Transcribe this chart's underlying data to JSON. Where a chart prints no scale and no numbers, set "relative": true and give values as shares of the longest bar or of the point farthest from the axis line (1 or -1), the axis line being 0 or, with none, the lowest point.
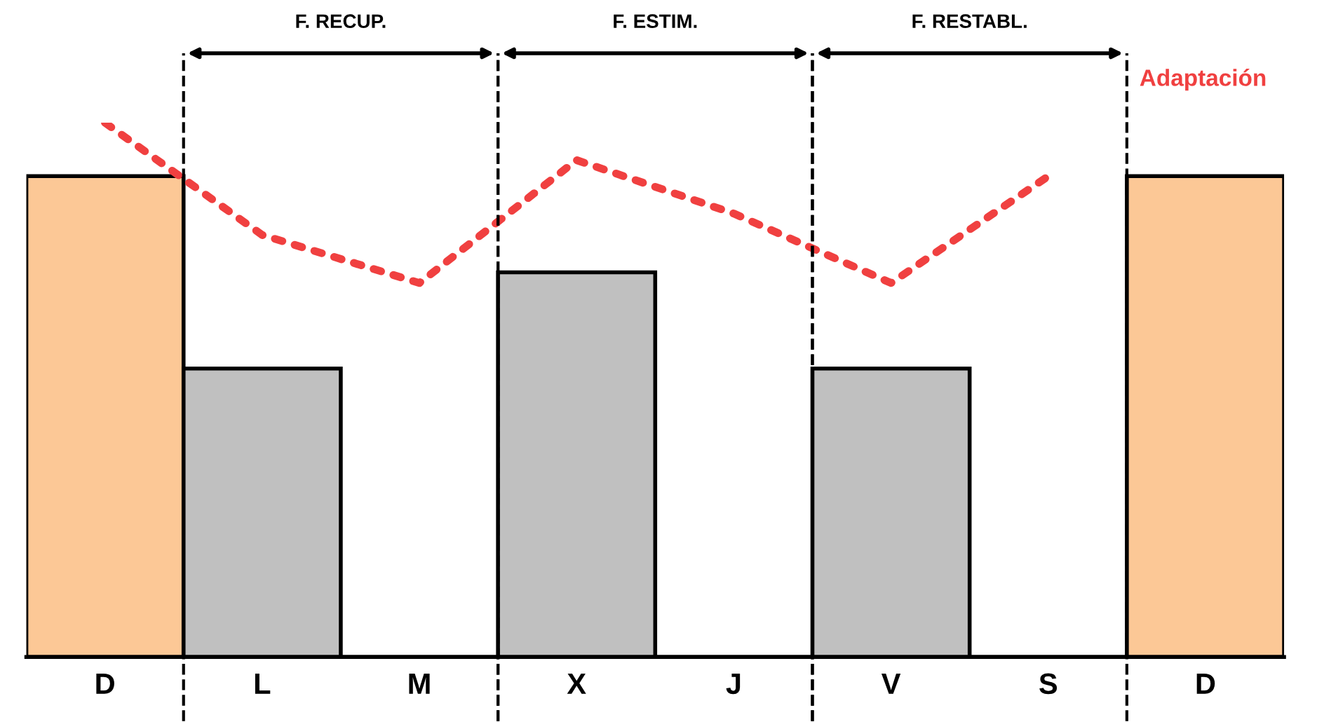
{
  "chart_data": {
    "type": "bar",
    "relative": true,
    "categories": [
      "D",
      "L",
      "M",
      "X",
      "J",
      "V",
      "S",
      "D"
    ],
    "series": [
      {
        "colors": [
          "#fcc896",
          "#c0c0c0",
          "#c0c0c0",
          "#c0c0c0",
          "#c0c0c0",
          "#c0c0c0",
          "#c0c0c0",
          "#fcc896"
        ],
        "values": [
          0.9,
          0.54,
          0,
          0.72,
          0,
          0.54,
          0,
          0.9
        ]
      },
      {
        "type": "line",
        "name": "Adaptación",
        "color": "#f04040",
        "line_style": "dotted",
        "values": [
          1.0,
          0.79,
          0.7,
          0.93,
          0.83,
          0.7,
          0.9,
          null
        ]
      }
    ],
    "annotations": [
      "F. RECUP.",
      "F. ESTIM.",
      "F. RESTABL."
    ]
  }
}
